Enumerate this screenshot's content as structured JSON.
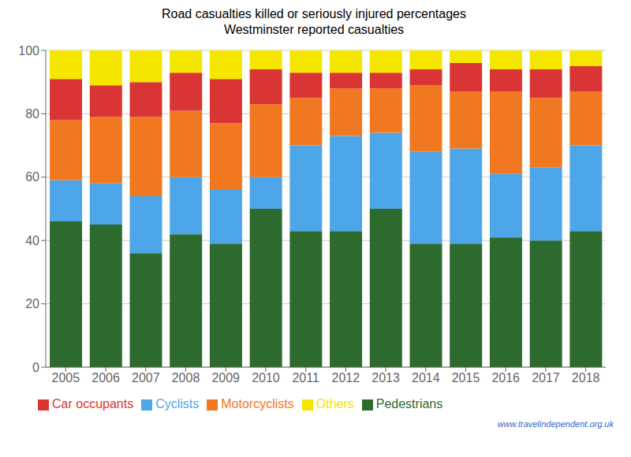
{
  "chart_data": {
    "type": "bar",
    "title": "Road casualties killed or seriously injured percentages",
    "subtitle": "Westminster reported casualties",
    "categories": [
      "2005",
      "2006",
      "2007",
      "2008",
      "2009",
      "2010",
      "2011",
      "2012",
      "2013",
      "2014",
      "2015",
      "2016",
      "2017",
      "2018"
    ],
    "series": [
      {
        "name": "Pedestrians",
        "color": "#2d6a2d",
        "values": [
          46,
          45,
          36,
          42,
          39,
          50,
          43,
          43,
          50,
          39,
          39,
          41,
          40,
          43
        ]
      },
      {
        "name": "Cyclists",
        "color": "#4da6e8",
        "values": [
          13,
          13,
          18,
          18,
          17,
          10,
          27,
          30,
          24,
          29,
          30,
          20,
          23,
          27
        ]
      },
      {
        "name": "Motorcyclists",
        "color": "#f07820",
        "values": [
          19,
          21,
          25,
          21,
          21,
          23,
          15,
          15,
          14,
          21,
          18,
          26,
          22,
          17
        ]
      },
      {
        "name": "Car occupants",
        "color": "#d93535",
        "values": [
          13,
          10,
          11,
          12,
          14,
          11,
          8,
          5,
          5,
          5,
          9,
          7,
          9,
          8
        ]
      },
      {
        "name": "Others",
        "color": "#f5e600",
        "values": [
          9,
          11,
          10,
          7,
          9,
          6,
          7,
          7,
          7,
          6,
          4,
          6,
          6,
          5
        ]
      }
    ],
    "stacked": true,
    "ylim": [
      0,
      100
    ],
    "yticks": [
      0,
      20,
      40,
      60,
      80,
      100
    ],
    "grid": true,
    "legend": "bottom left",
    "annotations": [
      {
        "text": "www.travelindependent.org.uk",
        "color": "#3366cc"
      }
    ]
  }
}
